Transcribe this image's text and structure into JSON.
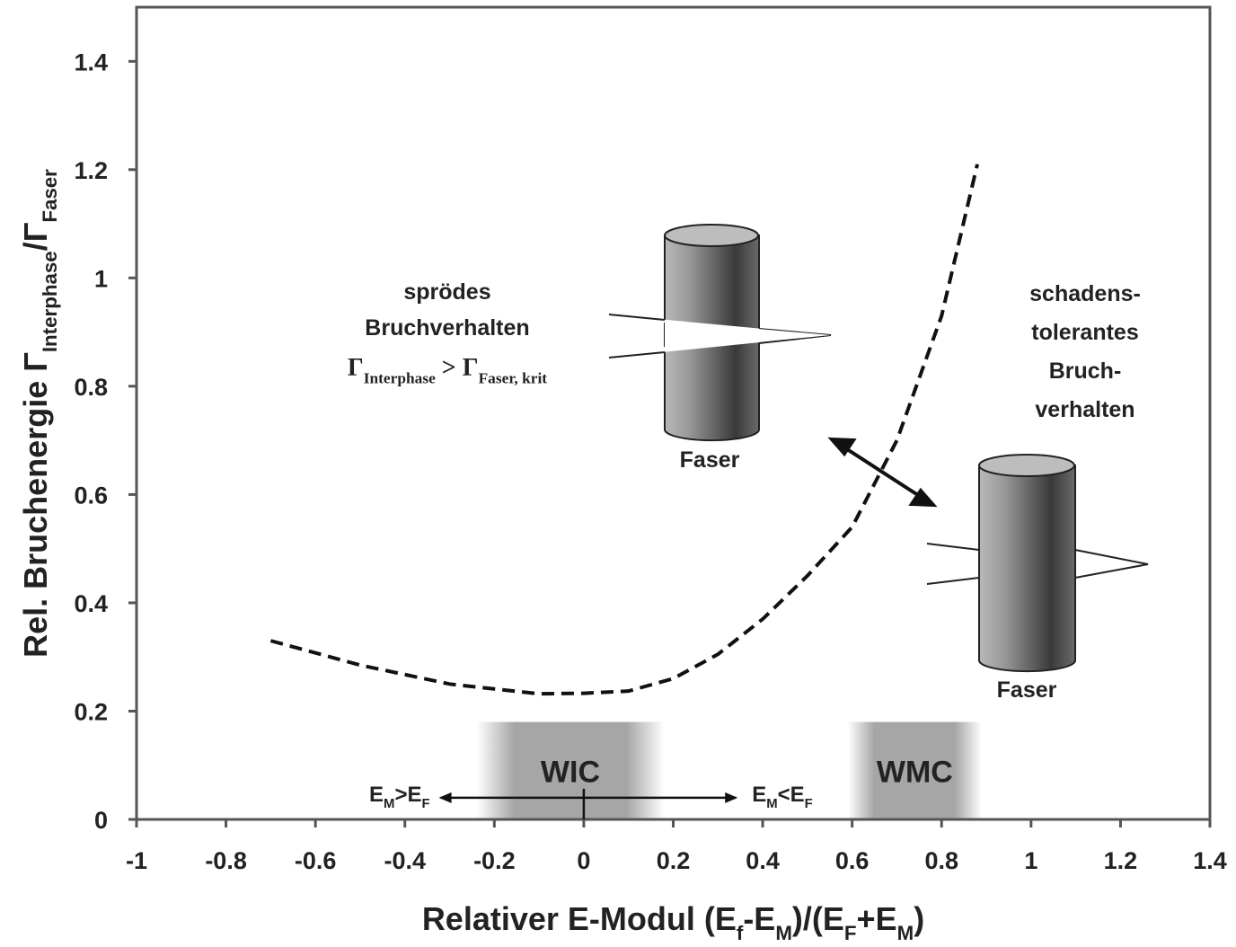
{
  "chart_data": {
    "type": "line",
    "x_label": [
      "Relativer E-Modul (E",
      "f",
      "-E",
      "M",
      ")/(E",
      "F",
      "+E",
      "M",
      ")"
    ],
    "y_label": [
      "Rel. Bruchenergie Γ",
      "Interphase",
      "/Γ",
      "Faser"
    ],
    "xlim": [
      -1,
      1.4
    ],
    "ylim": [
      0,
      1.5
    ],
    "xticks": [
      -1,
      -0.8,
      -0.6,
      -0.4,
      -0.2,
      0,
      0.2,
      0.4,
      0.6,
      0.8,
      1,
      1.2,
      1.4
    ],
    "yticks": [
      0,
      0.2,
      0.4,
      0.6,
      0.8,
      1,
      1.2,
      1.4
    ],
    "series": [
      {
        "color": "#111111",
        "x": [
          -0.7,
          -0.5,
          -0.3,
          -0.1,
          0,
          0.1,
          0.2,
          0.3,
          0.4,
          0.5,
          0.6,
          0.7,
          0.8,
          0.88
        ],
        "values": [
          0.33,
          0.285,
          0.25,
          0.232,
          0.233,
          0.237,
          0.26,
          0.305,
          0.37,
          0.45,
          0.54,
          0.7,
          0.93,
          1.21
        ]
      }
    ],
    "regions": [
      {
        "label": "WIC",
        "x": [
          -0.24,
          0.18
        ],
        "y": [
          0,
          0.18
        ]
      },
      {
        "label": "WMC",
        "x": [
          0.59,
          0.89
        ],
        "y": [
          0,
          0.18
        ]
      }
    ],
    "modulus_arrow": {
      "x": [
        -0.32,
        0.34
      ],
      "y": 0.04,
      "left": [
        "E",
        "M",
        ">E",
        "F"
      ],
      "right": [
        "E",
        "M",
        "<E",
        "F"
      ]
    },
    "annotations": {
      "brittle": [
        "sprödes",
        "Bruchverhalten"
      ],
      "condition": [
        "Γ",
        "Interphase",
        " > Γ",
        "Faser, krit"
      ],
      "tolerant": [
        "schadens-",
        "tolerantes",
        "Bruch-",
        "verhalten"
      ],
      "fiber_1": "Faser",
      "fiber_2": "Faser"
    }
  }
}
